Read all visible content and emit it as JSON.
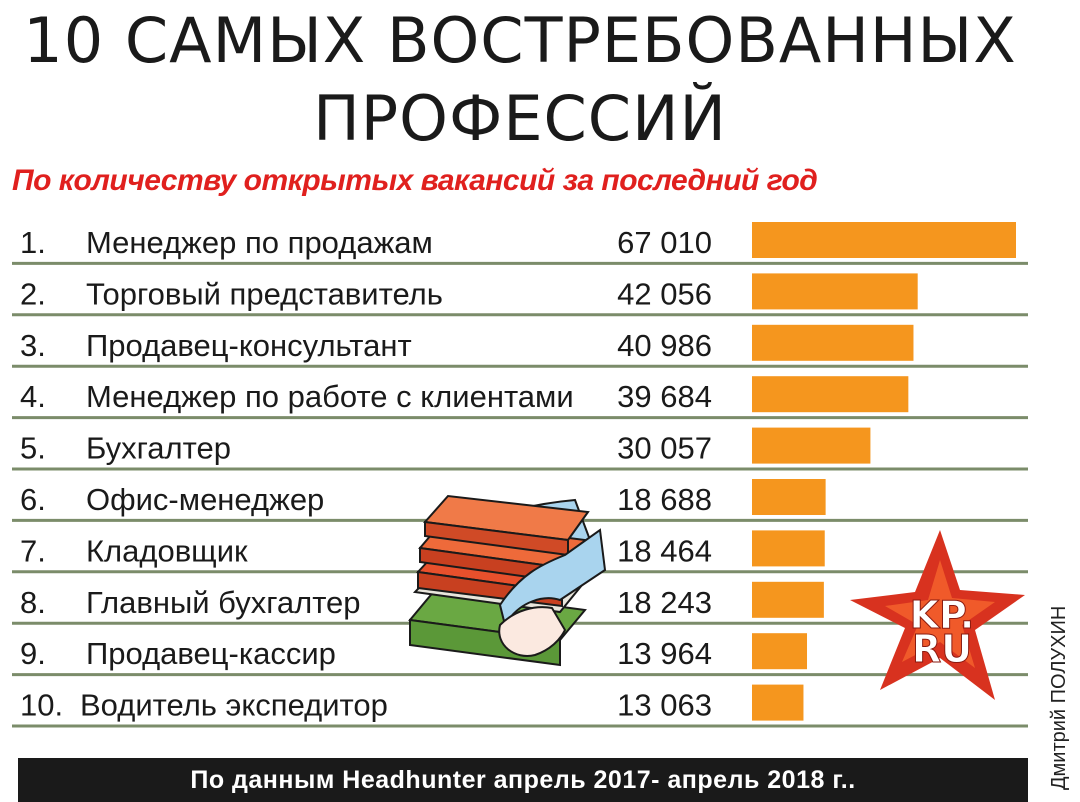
{
  "title_line1": "10 САМЫХ ВОСТРЕБОВАННЫХ",
  "title_line2": "ПРОФЕССИЙ",
  "subtitle": "По количеству открытых вакансий за последний год",
  "footer": "По данным Headhunter апрель 2017- апрель 2018 г..",
  "credit": "Дмитрий ПОЛУХИН",
  "logo_text": [
    "KP.",
    "RU"
  ],
  "colors": {
    "bar": "#f5961e",
    "row_line": "#7b8c6a",
    "subtitle": "#e0201e",
    "logo_star": "#d8321f"
  },
  "chart_data": {
    "type": "bar",
    "orientation": "horizontal",
    "title": "10 САМЫХ ВОСТРЕБОВАННЫХ ПРОФЕССИЙ",
    "subtitle": "По количеству открытых вакансий за последний год",
    "ranks": [
      "1.",
      "2.",
      "3.",
      "4.",
      "5.",
      "6.",
      "7.",
      "8.",
      "9.",
      "10."
    ],
    "categories": [
      "Менеджер по продажам",
      "Торговый представитель",
      "Продавец-консультант",
      "Менеджер по работе с клиентами",
      "Бухгалтер",
      "Офис-менеджер",
      "Кладовщик",
      "Главный бухгалтер",
      "Продавец-кассир",
      "Водитель экспедитор"
    ],
    "values": [
      67010,
      42056,
      40986,
      39684,
      30057,
      18688,
      18464,
      18243,
      13964,
      13063
    ],
    "value_labels": [
      "67 010",
      "42 056",
      "40 986",
      "39 684",
      "30 057",
      "18 688",
      "18 464",
      "18 243",
      "13 964",
      "13 063"
    ],
    "xlim": [
      0,
      67010
    ],
    "grid": false,
    "legend": "none"
  }
}
